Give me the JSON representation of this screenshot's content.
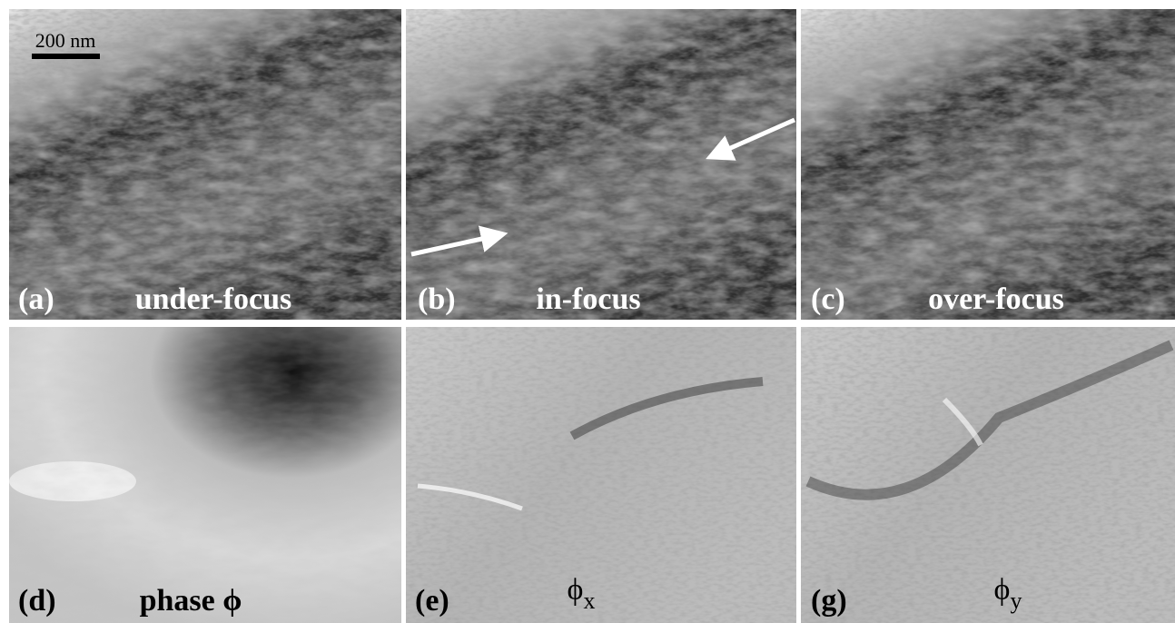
{
  "scale_bar": "200 nm",
  "panels": [
    {
      "tag": "(a)",
      "caption": "under-focus"
    },
    {
      "tag": "(b)",
      "caption": "in-focus"
    },
    {
      "tag": "(c)",
      "caption": "over-focus"
    },
    {
      "tag": "(d)",
      "caption": "phase ϕ"
    },
    {
      "tag": "(e)",
      "symbol": "ϕ",
      "subscript": "x"
    },
    {
      "tag": "(g)",
      "symbol": "ϕ",
      "subscript": "y"
    }
  ]
}
